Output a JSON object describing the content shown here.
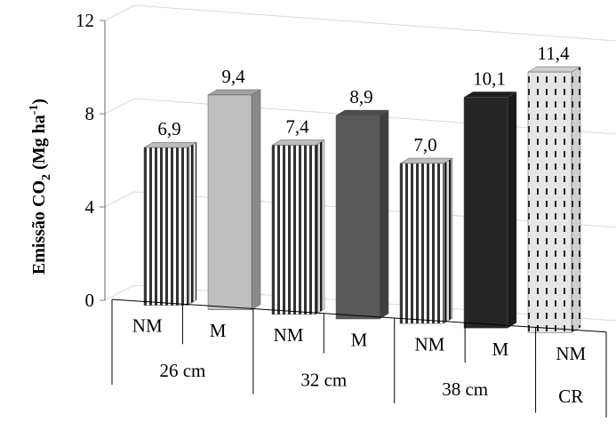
{
  "chart_data": {
    "type": "bar",
    "style": "3d-perspective",
    "ylabel": "Emissão CO",
    "ylabel_sub": "2",
    "ylabel_unit": " (Mg ha",
    "ylabel_sup": "-1",
    "ylabel_close": ")",
    "ylim": [
      0,
      12
    ],
    "yticks": [
      "0",
      "4",
      "8",
      "12"
    ],
    "grid": true,
    "categories": [
      "NM",
      "M",
      "NM",
      "M",
      "NM",
      "M",
      "NM"
    ],
    "groups": [
      "26 cm",
      "32 cm",
      "38 cm",
      "CR"
    ],
    "values": [
      6.9,
      9.4,
      7.4,
      8.9,
      7.0,
      10.1,
      11.4
    ],
    "value_labels": [
      "6,9",
      "9,4",
      "7,4",
      "8,9",
      "7,0",
      "10,1",
      "11,4"
    ],
    "bar_fills": [
      "stripes",
      "#bfbfbf",
      "stripes",
      "#595959",
      "stripes",
      "#262626",
      "dashes"
    ]
  }
}
